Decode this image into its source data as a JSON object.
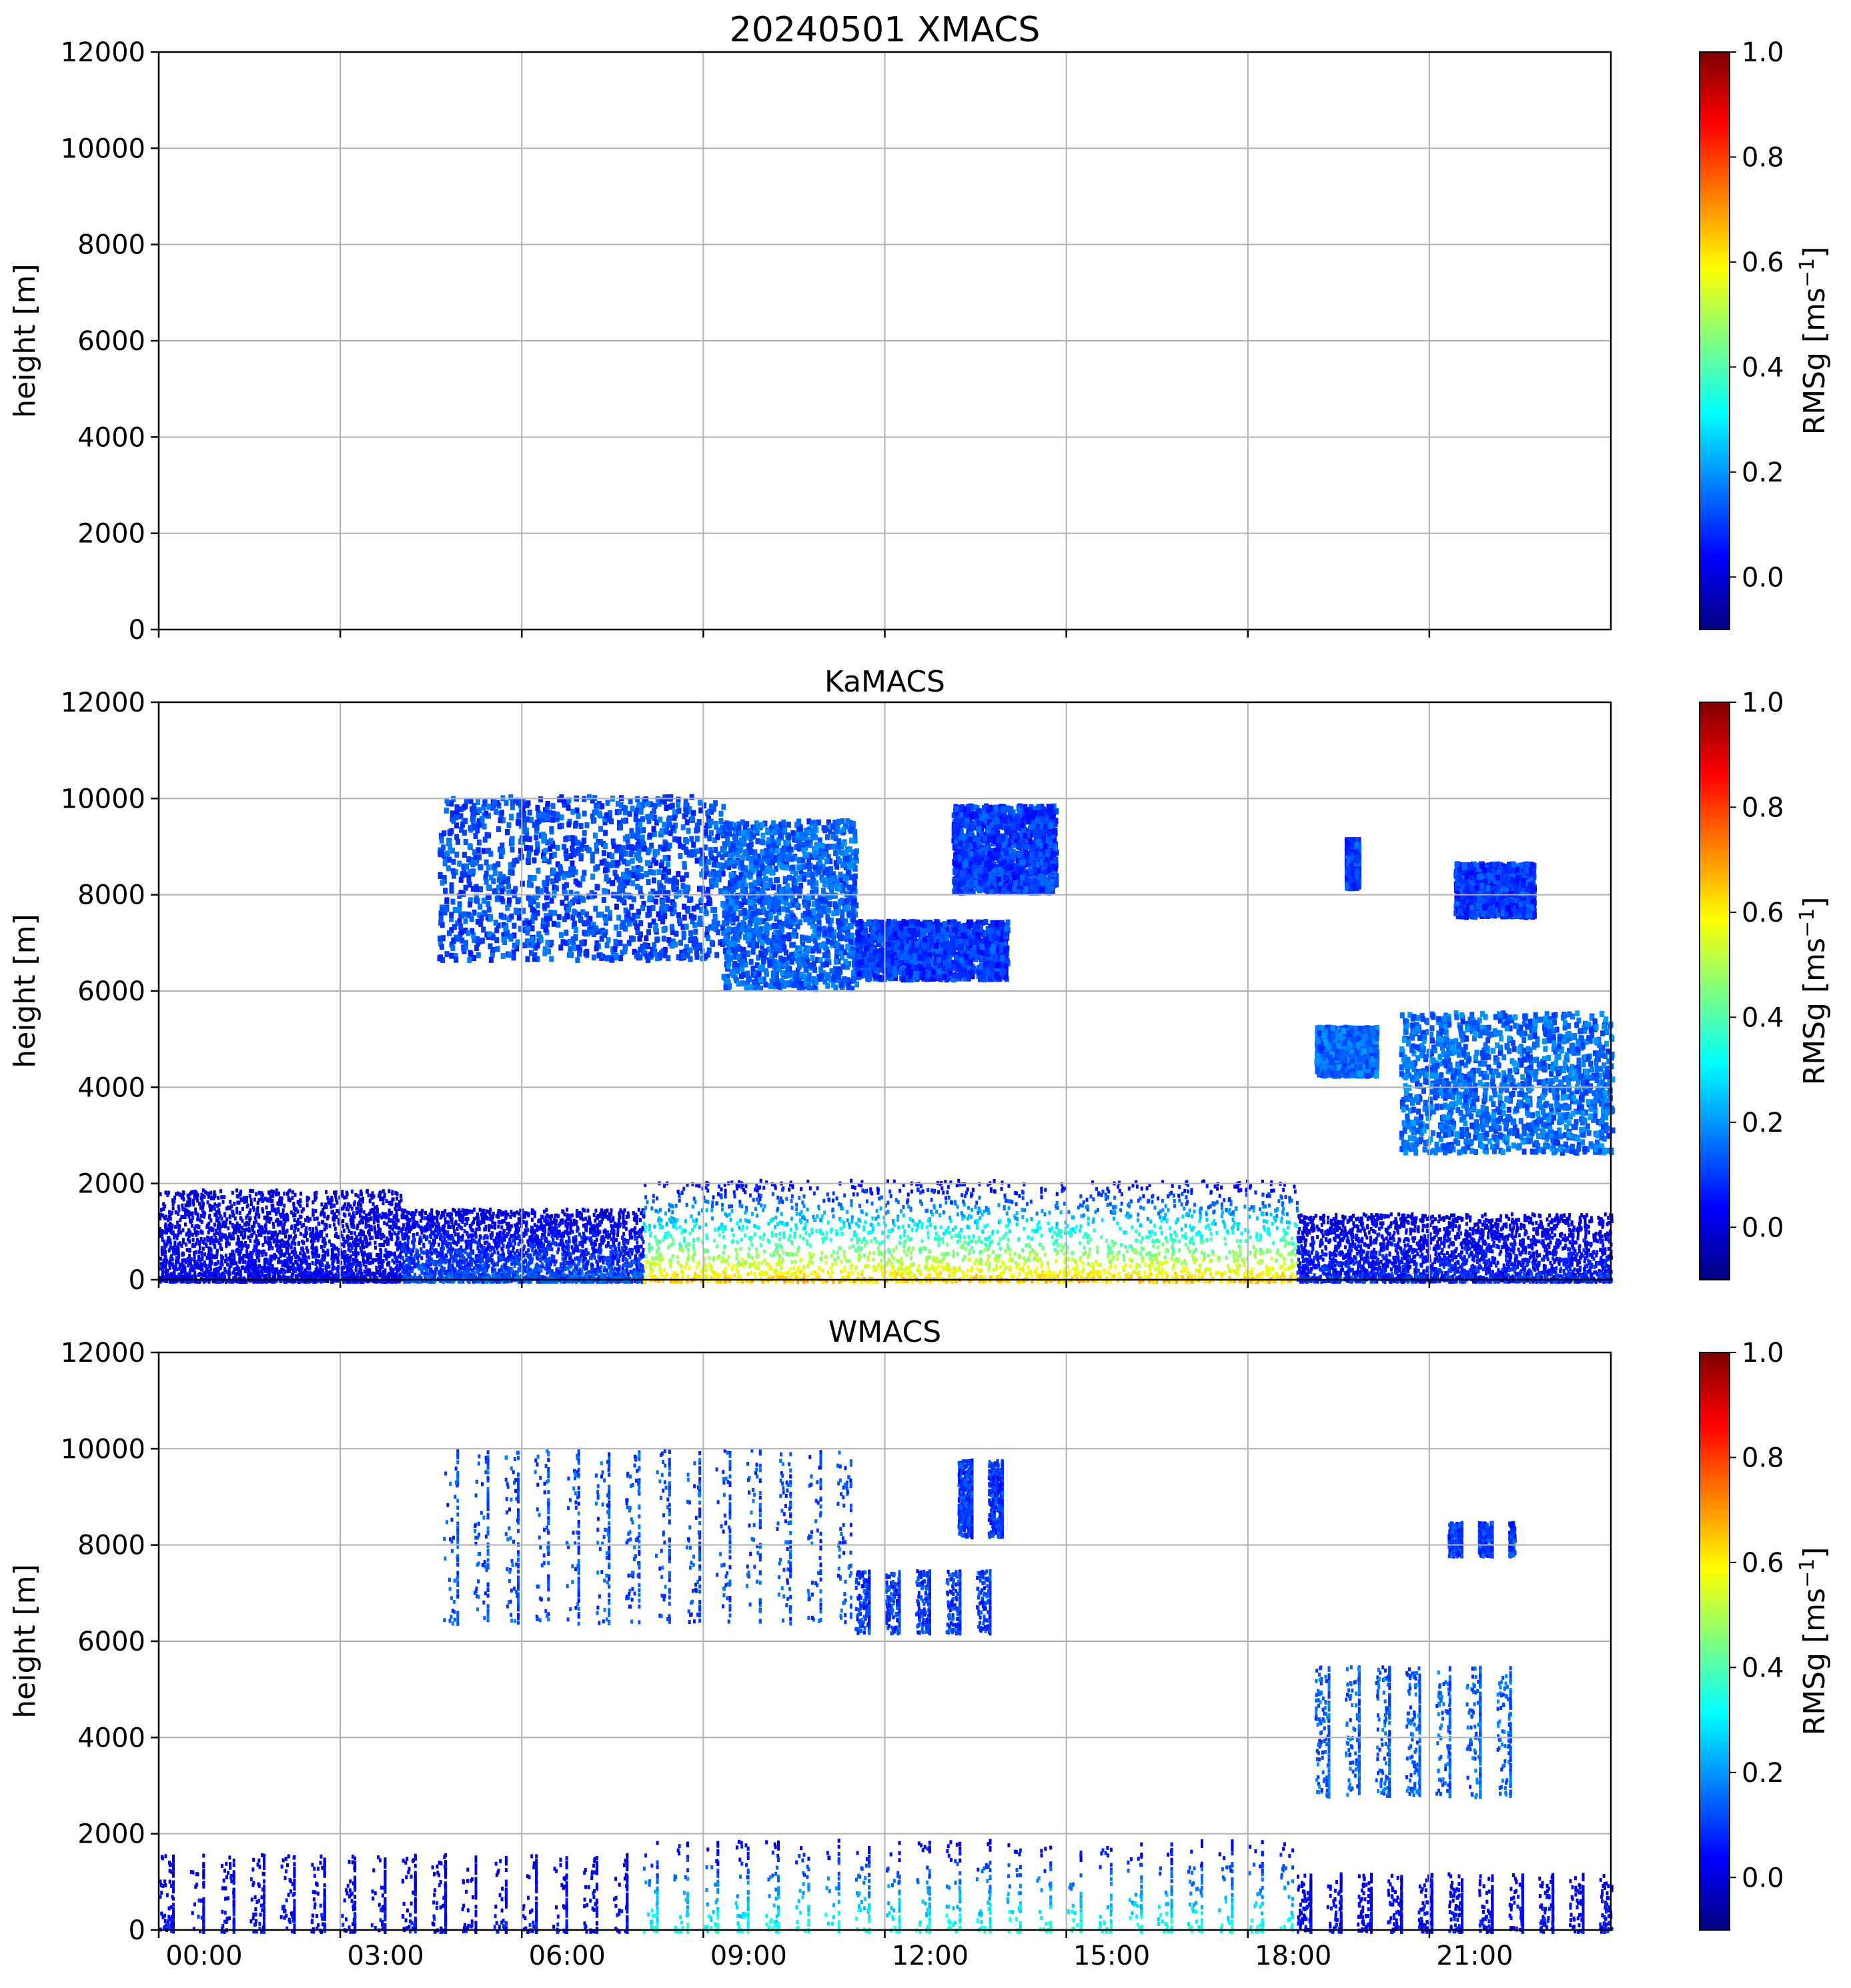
{
  "chart_data": [
    {
      "type": "heatmap",
      "title": "20240501 XMACS",
      "ylabel": "height [m]",
      "ylim": [
        0,
        12000
      ],
      "yticks": [
        "0",
        "2000",
        "4000",
        "6000",
        "8000",
        "10000",
        "12000"
      ],
      "xlim": [
        "00:00",
        "24:00"
      ],
      "xticks": [
        "00:00",
        "03:00",
        "06:00",
        "09:00",
        "12:00",
        "15:00",
        "18:00",
        "21:00"
      ],
      "show_xtick_labels": false,
      "grid": true,
      "colorbar": {
        "label": "RMSg [ms",
        "label_sup": "−1",
        "label_end": "]",
        "ticks": [
          "0.0",
          "0.2",
          "0.4",
          "0.6",
          "0.8",
          "1.0"
        ],
        "range": [
          -0.1,
          1.0
        ],
        "colormap": "jet"
      },
      "regions": []
    },
    {
      "type": "heatmap",
      "title": "KaMACS",
      "ylabel": "height [m]",
      "ylim": [
        0,
        12000
      ],
      "yticks": [
        "0",
        "2000",
        "4000",
        "6000",
        "8000",
        "10000",
        "12000"
      ],
      "xlim": [
        "00:00",
        "24:00"
      ],
      "xticks": [
        "00:00",
        "03:00",
        "06:00",
        "09:00",
        "12:00",
        "15:00",
        "18:00",
        "21:00"
      ],
      "show_xtick_labels": false,
      "grid": true,
      "colorbar": {
        "label": "RMSg [ms",
        "label_sup": "−1",
        "label_end": "]",
        "ticks": [
          "0.0",
          "0.2",
          "0.4",
          "0.6",
          "0.8",
          "1.0"
        ],
        "range": [
          -0.1,
          1.0
        ],
        "colormap": "jet"
      },
      "regions": [
        {
          "kind": "cirrus",
          "t0": 4.6,
          "t1": 9.3,
          "z0": 6700,
          "z1": 10100,
          "value": 0.12
        },
        {
          "kind": "cirrus",
          "t0": 9.3,
          "t1": 11.5,
          "z0": 6100,
          "z1": 9600,
          "value": 0.14
        },
        {
          "kind": "cirrus",
          "t0": 11.5,
          "t1": 14.0,
          "z0": 6300,
          "z1": 7500,
          "value": 0.1
        },
        {
          "kind": "cirrus",
          "t0": 13.1,
          "t1": 14.8,
          "z0": 8100,
          "z1": 9900,
          "value": 0.1
        },
        {
          "kind": "cirrus",
          "t0": 19.6,
          "t1": 19.8,
          "z0": 8200,
          "z1": 9200,
          "value": 0.1
        },
        {
          "kind": "cirrus",
          "t0": 21.4,
          "t1": 22.7,
          "z0": 7600,
          "z1": 8700,
          "value": 0.1
        },
        {
          "kind": "cirrus",
          "t0": 19.1,
          "t1": 20.1,
          "z0": 4300,
          "z1": 5300,
          "value": 0.15
        },
        {
          "kind": "cirrus",
          "t0": 20.5,
          "t1": 24.0,
          "z0": 2700,
          "z1": 5600,
          "value": 0.15
        },
        {
          "kind": "boundary",
          "t0": 0.0,
          "t1": 4.0,
          "z0": 0,
          "z1": 1900,
          "value": 0.02
        },
        {
          "kind": "boundary",
          "t0": 4.0,
          "t1": 8.0,
          "z0": 0,
          "z1": 1500,
          "value": 0.08
        },
        {
          "kind": "boundary",
          "t0": 8.0,
          "t1": 18.8,
          "z0": 0,
          "z1": 2100,
          "value": 0.4
        },
        {
          "kind": "boundary",
          "t0": 18.8,
          "t1": 24.0,
          "z0": 0,
          "z1": 1400,
          "value": 0.05
        }
      ]
    },
    {
      "type": "heatmap",
      "title": "WMACS",
      "ylabel": "height [m]",
      "ylim": [
        0,
        12000
      ],
      "yticks": [
        "0",
        "2000",
        "4000",
        "6000",
        "8000",
        "10000",
        "12000"
      ],
      "xlim": [
        "00:00",
        "24:00"
      ],
      "xticks": [
        "00:00",
        "03:00",
        "06:00",
        "09:00",
        "12:00",
        "15:00",
        "18:00",
        "21:00"
      ],
      "show_xtick_labels": true,
      "grid": true,
      "colorbar": {
        "label": "RMSg [ms",
        "label_sup": "−1",
        "label_end": "]",
        "ticks": [
          "0.0",
          "0.2",
          "0.4",
          "0.6",
          "0.8",
          "1.0"
        ],
        "range": [
          -0.1,
          1.0
        ],
        "colormap": "jet"
      },
      "regions": [
        {
          "kind": "stripes",
          "t0": 4.7,
          "t1": 11.5,
          "z0": 6400,
          "z1": 10000,
          "value": 0.12
        },
        {
          "kind": "stripes",
          "t0": 11.5,
          "t1": 14.0,
          "z0": 6200,
          "z1": 7500,
          "value": 0.1
        },
        {
          "kind": "stripes",
          "t0": 13.2,
          "t1": 14.0,
          "z0": 8200,
          "z1": 9800,
          "value": 0.1
        },
        {
          "kind": "stripes",
          "t0": 19.1,
          "t1": 22.6,
          "z0": 2800,
          "z1": 5500,
          "value": 0.14
        },
        {
          "kind": "stripes",
          "t0": 21.3,
          "t1": 22.4,
          "z0": 7800,
          "z1": 8500,
          "value": 0.1
        },
        {
          "kind": "boundary_stripes",
          "t0": 0.0,
          "t1": 8.0,
          "z0": 0,
          "z1": 1600,
          "value": 0.03
        },
        {
          "kind": "boundary_stripes",
          "t0": 8.0,
          "t1": 18.8,
          "z0": 0,
          "z1": 1900,
          "value": 0.22
        },
        {
          "kind": "boundary_stripes",
          "t0": 18.8,
          "t1": 24.0,
          "z0": 0,
          "z1": 1200,
          "value": 0.03
        }
      ]
    }
  ]
}
